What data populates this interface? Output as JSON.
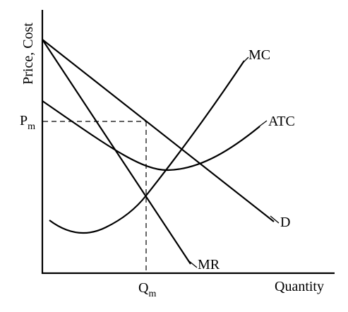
{
  "axes": {
    "y_label": "Price, Cost",
    "x_label": "Quantity"
  },
  "curves": {
    "demand": "D",
    "marginal_revenue": "MR",
    "marginal_cost": "MC",
    "average_total_cost": "ATC"
  },
  "markers": {
    "price": {
      "main": "P",
      "sub": "m"
    },
    "quantity": {
      "main": "Q",
      "sub": "m"
    }
  }
}
